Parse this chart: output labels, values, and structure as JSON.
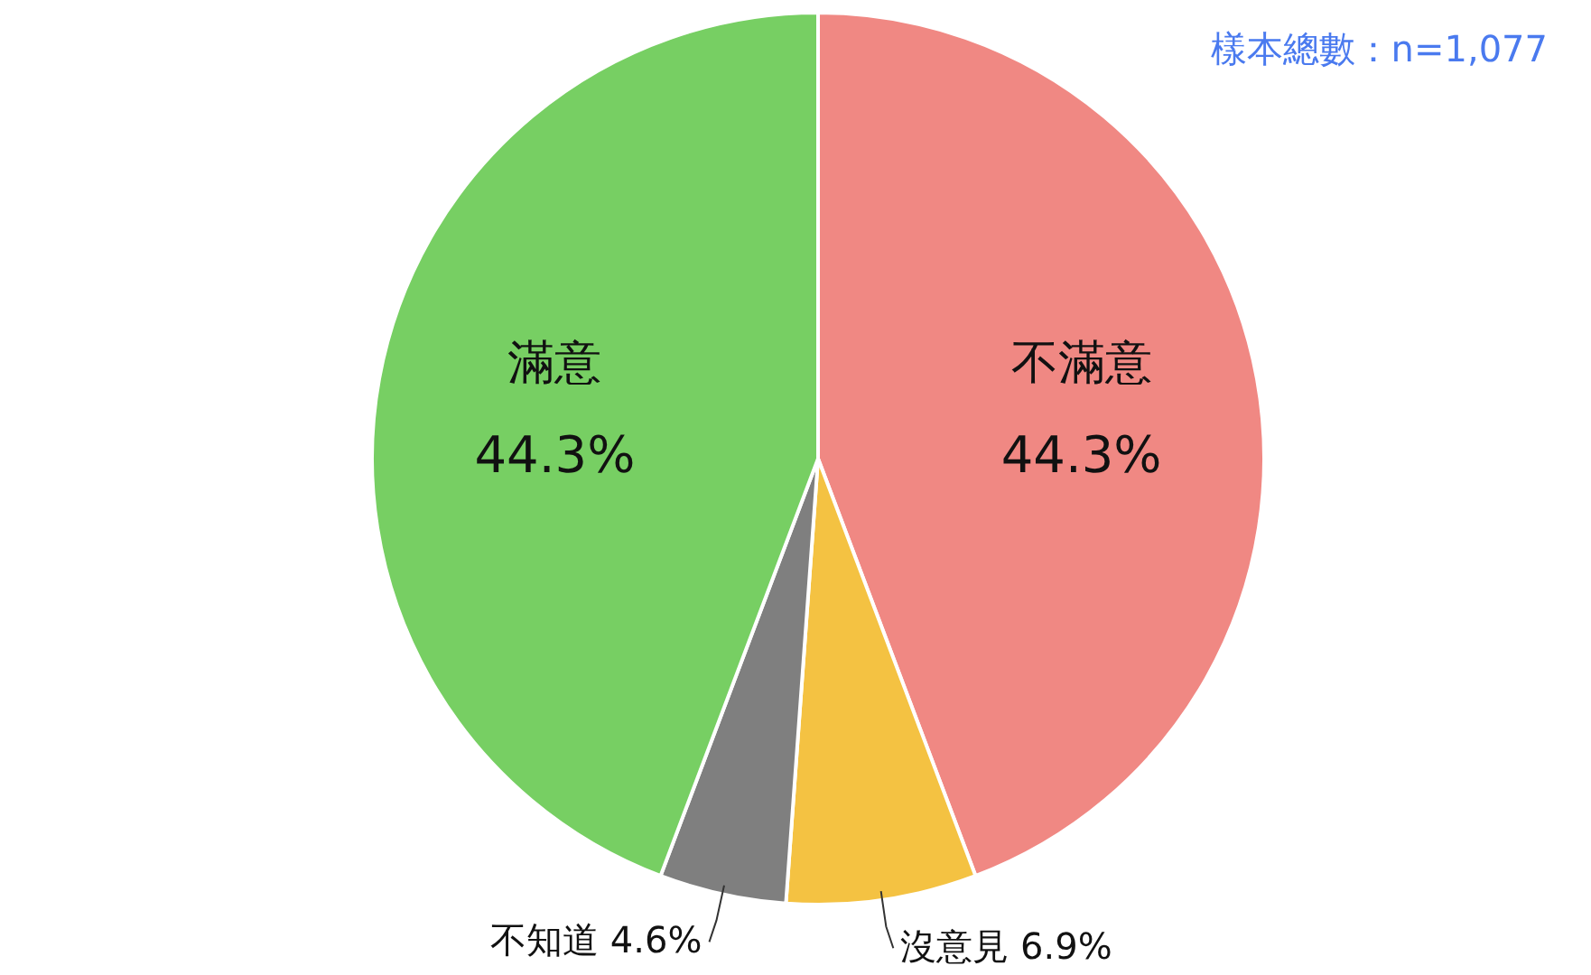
{
  "chart_data": {
    "type": "pie",
    "categories": [
      "不滿意",
      "沒意見",
      "不知道",
      "滿意"
    ],
    "values": [
      44.3,
      6.9,
      4.6,
      44.3
    ],
    "value_labels": [
      "44.3%",
      "6.9%",
      "4.6%",
      "44.3%"
    ],
    "colors": [
      "#f08883",
      "#f4c242",
      "#7f7f7f",
      "#77cf63"
    ],
    "annotations": [
      "樣本總數：n=1,077"
    ]
  }
}
